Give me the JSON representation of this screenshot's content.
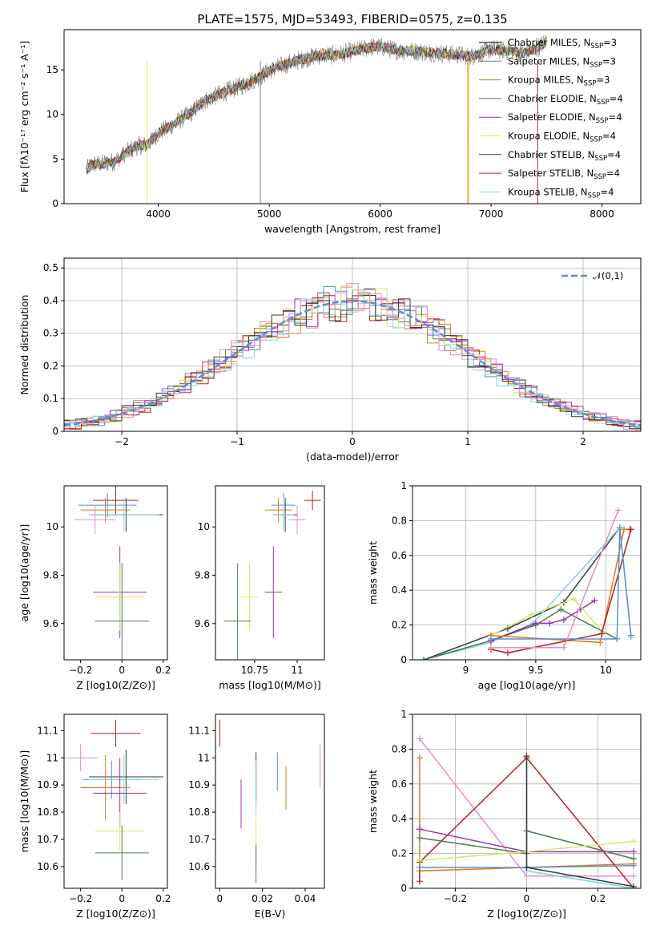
{
  "figure": {
    "title": "PLATE=1575, MJD=53493, FIBERID=0575, z=0.135"
  },
  "chart_data": [
    {
      "id": "spectrum",
      "type": "line",
      "xlabel": "wavelength [Angstrom, rest frame]",
      "ylabel": "Flux [fλ10⁻¹⁷ erg cm⁻² s⁻¹ A⁻¹]",
      "xlim": [
        3150,
        8350
      ],
      "ylim": [
        0,
        19.5
      ],
      "xticks": [
        4000,
        5000,
        6000,
        7000,
        8000
      ],
      "yticks": [
        0,
        5,
        10,
        15
      ],
      "grid": false,
      "legend_position": "right",
      "observed_color": "#808080",
      "observed": {
        "x": [
          3350,
          3400,
          3500,
          3600,
          3700,
          3800,
          3900,
          4000,
          4100,
          4200,
          4300,
          4400,
          4500,
          4600,
          4700,
          4800,
          4900,
          5000,
          5100,
          5200,
          5300,
          5400,
          5500,
          5600,
          5700,
          5800,
          5900,
          6000,
          6100,
          6200,
          6300,
          6400,
          6500,
          6600,
          6700,
          6800,
          6900,
          7000,
          7100,
          7200,
          7300,
          7400,
          7500
        ],
        "y": [
          3.8,
          4.4,
          4.5,
          4.7,
          5.6,
          6.4,
          6.6,
          7.9,
          8.6,
          9.4,
          10.2,
          11.4,
          12.0,
          12.5,
          13.0,
          13.5,
          14.1,
          14.9,
          15.4,
          15.8,
          16.2,
          16.5,
          16.7,
          16.6,
          16.9,
          17.2,
          17.5,
          17.6,
          17.3,
          17.1,
          17.1,
          17.0,
          16.9,
          16.8,
          16.7,
          16.5,
          16.8,
          17.3,
          17.2,
          17.1,
          16.9,
          17.3,
          18.2
        ]
      },
      "series": [
        {
          "name": "Chabrier MILES, N<sub>SSP</sub>=3",
          "label": "Chabrier MILES, N",
          "sub": "SSP",
          "suffix": "=3",
          "color": "#000000",
          "x": [
            3350,
            8000
          ],
          "y": [
            4.0,
            17.4
          ]
        },
        {
          "name": "Salpeter MILES, N<sub>SSP</sub>=3",
          "label": "Salpeter MILES, N",
          "sub": "SSP",
          "suffix": "=3",
          "color": "#7f7f7f",
          "x": [
            3350,
            8000
          ],
          "y": [
            4.0,
            17.4
          ]
        },
        {
          "name": "Kroupa MILES, N<sub>SSP</sub>=3",
          "label": "Kroupa MILES, N",
          "sub": "SSP",
          "suffix": "=3",
          "color": "#b8860b",
          "x": [
            3350,
            8000
          ],
          "y": [
            4.0,
            17.4
          ]
        },
        {
          "name": "Chabrier ELODIE, N<sub>SSP</sub>=4",
          "label": "Chabrier ELODIE, N",
          "sub": "SSP",
          "suffix": "=4",
          "color": "#4a7d4a",
          "x": [
            3350,
            8000
          ],
          "y": [
            4.0,
            17.4
          ]
        },
        {
          "name": "Salpeter ELODIE, N<sub>SSP</sub>=4",
          "label": "Salpeter ELODIE, N",
          "sub": "SSP",
          "suffix": "=4",
          "color": "#9b30b0",
          "x": [
            3350,
            8000
          ],
          "y": [
            4.0,
            17.4
          ]
        },
        {
          "name": "Kroupa ELODIE, N<sub>SSP</sub>=4",
          "label": "Kroupa ELODIE, N",
          "sub": "SSP",
          "suffix": "=4",
          "color": "#e6e84a",
          "x": [
            3350,
            8000
          ],
          "y": [
            4.0,
            17.4
          ]
        },
        {
          "name": "Chabrier STELIB, N<sub>SSP</sub>=4",
          "label": "Chabrier STELIB, N",
          "sub": "SSP",
          "suffix": "=4",
          "color": "#3a3a3a",
          "x": [
            3350,
            8000
          ],
          "y": [
            4.0,
            17.4
          ]
        },
        {
          "name": "Salpeter STELIB, N<sub>SSP</sub>=4",
          "label": "Salpeter STELIB, N",
          "sub": "SSP",
          "suffix": "=4",
          "color": "#b22222",
          "x": [
            3350,
            8000
          ],
          "y": [
            4.0,
            17.4
          ]
        },
        {
          "name": "Kroupa STELIB, N<sub>SSP</sub>=4",
          "label": "Kroupa STELIB, N",
          "sub": "SSP",
          "suffix": "=4",
          "color": "#7fd6e0",
          "x": [
            3350,
            8000
          ],
          "y": [
            4.0,
            17.4
          ]
        }
      ],
      "vertical_drops": [
        {
          "x": 3900,
          "color": "#e6e84a"
        },
        {
          "x": 4920,
          "color": "#808080"
        },
        {
          "x": 6800,
          "color": "#e6e84a"
        },
        {
          "x": 6790,
          "color": "#e07b1a"
        },
        {
          "x": 7420,
          "color": "#b22222"
        }
      ]
    },
    {
      "id": "residuals",
      "type": "line",
      "xlabel": "(data-model)/error",
      "ylabel": "Normed distribution",
      "xlim": [
        -2.5,
        2.5
      ],
      "ylim": [
        0,
        0.53
      ],
      "xticks": [
        -2,
        -1,
        0,
        1,
        2
      ],
      "yticks": [
        0.0,
        0.1,
        0.2,
        0.3,
        0.4,
        0.5
      ],
      "grid": true,
      "legend_position": "top-right",
      "gaussian": {
        "label": "𝒩(0,1)",
        "color": "#5b8fd6",
        "mean": 0,
        "sigma": 1
      },
      "histogram_colors": [
        "#e8868a",
        "#5b8fd6",
        "#4a7d4a",
        "#e07b1a",
        "#9b30b0",
        "#b22222",
        "#d4e86a",
        "#7fd6e0",
        "#3a3a3a",
        "#e88bc6"
      ],
      "bin_width": 0.1
    },
    {
      "id": "age-vs-Z",
      "type": "scatter",
      "xlabel": "Z [log10(Z/Z⊙)]",
      "ylabel": "age  [log10(age/yr)]",
      "xlim": [
        -0.28,
        0.22
      ],
      "ylim": [
        9.45,
        10.17
      ],
      "xticks": [
        -0.2,
        0.0,
        0.2
      ],
      "yticks": [
        9.6,
        9.8,
        10.0
      ],
      "grid": false,
      "points": [
        {
          "x": -0.03,
          "y": 10.11,
          "xerr": 0.11,
          "yerr": 0.06,
          "color": "#b22222"
        },
        {
          "x": -0.07,
          "y": 10.09,
          "xerr": 0.14,
          "yerr": 0.05,
          "color": "#5b8fd6"
        },
        {
          "x": -0.08,
          "y": 10.07,
          "xerr": 0.12,
          "yerr": 0.05,
          "color": "#e07b1a"
        },
        {
          "x": 0.02,
          "y": 10.05,
          "xerr": 0.18,
          "yerr": 0.07,
          "color": "#3a3a3a"
        },
        {
          "x": 0.01,
          "y": 10.05,
          "xerr": 0.17,
          "yerr": 0.07,
          "color": "#7fd6e0"
        },
        {
          "x": -0.13,
          "y": 10.03,
          "xerr": 0.1,
          "yerr": 0.06,
          "color": "#e88bc6"
        },
        {
          "x": -0.01,
          "y": 9.73,
          "xerr": 0.13,
          "yerr": 0.19,
          "color": "#9b30b0"
        },
        {
          "x": -0.01,
          "y": 9.71,
          "xerr": 0.12,
          "yerr": 0.14,
          "color": "#d4e86a"
        },
        {
          "x": 0.0,
          "y": 9.61,
          "xerr": 0.13,
          "yerr": 0.24,
          "color": "#4a7d4a"
        }
      ]
    },
    {
      "id": "age-vs-mass",
      "type": "scatter",
      "xlabel": "mass [log10(M/M⊙)]",
      "ylabel": "",
      "xlim": [
        10.52,
        11.16
      ],
      "ylim": [
        9.45,
        10.17
      ],
      "xticks": [
        10.75,
        11.0
      ],
      "yticks": [
        9.6,
        9.8,
        10.0
      ],
      "grid": false,
      "points": [
        {
          "x": 11.09,
          "y": 10.11,
          "xerr": 0.05,
          "yerr": 0.04,
          "color": "#b22222"
        },
        {
          "x": 10.92,
          "y": 10.09,
          "xerr": 0.07,
          "yerr": 0.05,
          "color": "#5b8fd6"
        },
        {
          "x": 10.89,
          "y": 10.07,
          "xerr": 0.08,
          "yerr": 0.05,
          "color": "#e07b1a"
        },
        {
          "x": 10.93,
          "y": 10.05,
          "xerr": 0.07,
          "yerr": 0.07,
          "color": "#3a3a3a"
        },
        {
          "x": 10.92,
          "y": 10.05,
          "xerr": 0.06,
          "yerr": 0.07,
          "color": "#7fd6e0"
        },
        {
          "x": 11.0,
          "y": 10.03,
          "xerr": 0.05,
          "yerr": 0.06,
          "color": "#e88bc6"
        },
        {
          "x": 10.86,
          "y": 9.73,
          "xerr": 0.05,
          "yerr": 0.19,
          "color": "#9b30b0"
        },
        {
          "x": 10.72,
          "y": 9.71,
          "xerr": 0.05,
          "yerr": 0.14,
          "color": "#d4e86a"
        },
        {
          "x": 10.65,
          "y": 9.61,
          "xerr": 0.08,
          "yerr": 0.24,
          "color": "#4a7d4a"
        }
      ]
    },
    {
      "id": "massweight-vs-age",
      "type": "line",
      "xlabel": "age  [log10(age/yr)]",
      "ylabel": "mass weight",
      "xlim": [
        8.62,
        10.25
      ],
      "ylim": [
        0,
        1.0
      ],
      "xticks": [
        9.0,
        9.5,
        10.0
      ],
      "yticks": [
        0.0,
        0.2,
        0.4,
        0.6,
        0.8,
        1.0
      ],
      "grid": true,
      "series": [
        {
          "color": "#3a3a3a",
          "x": [
            8.7,
            9.3,
            9.7,
            10.1
          ],
          "y": [
            0.0,
            0.18,
            0.33,
            0.76
          ]
        },
        {
          "color": "#7fd6e0",
          "x": [
            8.7,
            9.18,
            9.48,
            10.1,
            10.18
          ],
          "y": [
            0.0,
            0.1,
            0.21,
            0.76,
            0.13
          ]
        },
        {
          "color": "#4a7d4a",
          "x": [
            8.7,
            9.18,
            9.5,
            9.68,
            10.08
          ],
          "y": [
            0.0,
            0.11,
            0.2,
            0.29,
            0.12
          ]
        },
        {
          "color": "#9b30b0",
          "x": [
            9.18,
            9.5,
            9.6,
            9.7,
            9.82,
            9.92
          ],
          "y": [
            0.11,
            0.21,
            0.21,
            0.23,
            0.29,
            0.34
          ]
        },
        {
          "color": "#d4e86a",
          "x": [
            9.18,
            9.47,
            9.77,
            9.98
          ],
          "y": [
            0.14,
            0.26,
            0.35,
            0.16
          ]
        },
        {
          "color": "#e07b1a",
          "x": [
            9.18,
            9.96,
            10.13,
            10.17
          ],
          "y": [
            0.14,
            0.1,
            0.75,
            0.75
          ]
        },
        {
          "color": "#b22222",
          "x": [
            9.18,
            9.3,
            9.97,
            10.18
          ],
          "y": [
            0.06,
            0.04,
            0.15,
            0.75
          ]
        },
        {
          "color": "#5b8fd6",
          "x": [
            9.18,
            10.08,
            10.1,
            10.18
          ],
          "y": [
            0.12,
            0.12,
            0.76,
            0.14
          ]
        },
        {
          "color": "#e88bc6",
          "x": [
            9.18,
            9.7,
            10.09
          ],
          "y": [
            0.07,
            0.07,
            0.86
          ]
        }
      ]
    },
    {
      "id": "mass-vs-Z",
      "type": "scatter",
      "xlabel": "Z [log10(Z/Z⊙)]",
      "ylabel": "mass [log10(M/M⊙)]",
      "xlim": [
        -0.28,
        0.22
      ],
      "ylim": [
        10.52,
        11.16
      ],
      "xticks": [
        -0.2,
        0.0,
        0.2
      ],
      "yticks": [
        10.6,
        10.7,
        10.8,
        10.9,
        11.0,
        11.1
      ],
      "grid": false,
      "points": [
        {
          "x": -0.03,
          "y": 11.09,
          "xerr": 0.12,
          "yerr": 0.05,
          "color": "#b22222"
        },
        {
          "x": -0.2,
          "y": 11.0,
          "xerr": 0.08,
          "yerr": 0.05,
          "color": "#e88bc6"
        },
        {
          "x": 0.02,
          "y": 10.93,
          "xerr": 0.18,
          "yerr": 0.1,
          "color": "#3a3a3a"
        },
        {
          "x": -0.05,
          "y": 10.92,
          "xerr": 0.14,
          "yerr": 0.07,
          "color": "#5b8fd6"
        },
        {
          "x": 0.01,
          "y": 10.92,
          "xerr": 0.17,
          "yerr": 0.09,
          "color": "#7fd6e0"
        },
        {
          "x": -0.08,
          "y": 10.89,
          "xerr": 0.12,
          "yerr": 0.12,
          "color": "#e07b1a"
        },
        {
          "x": -0.01,
          "y": 10.87,
          "xerr": 0.13,
          "yerr": 0.13,
          "color": "#9b30b0"
        },
        {
          "x": -0.01,
          "y": 10.73,
          "xerr": 0.12,
          "yerr": 0.07,
          "color": "#d4e86a"
        },
        {
          "x": 0.0,
          "y": 10.65,
          "xerr": 0.13,
          "yerr": 0.1,
          "color": "#4a7d4a"
        }
      ]
    },
    {
      "id": "mass-vs-ebv",
      "type": "scatter",
      "xlabel": "E(B-V)",
      "ylabel": "",
      "xlim": [
        -0.002,
        0.049
      ],
      "ylim": [
        10.52,
        11.16
      ],
      "xticks": [
        0.0,
        0.02,
        0.04
      ],
      "yticks": [
        10.6,
        10.7,
        10.8,
        10.9,
        11.0,
        11.1
      ],
      "grid": false,
      "points": [
        {
          "x": 0.0,
          "y": 11.09,
          "xerr": 0.0,
          "yerr": 0.05,
          "color": "#b22222"
        },
        {
          "x": 0.047,
          "y": 10.97,
          "xerr": 0.0,
          "yerr": 0.08,
          "color": "#e88bc6"
        },
        {
          "x": 0.017,
          "y": 10.93,
          "xerr": 0.0,
          "yerr": 0.09,
          "color": "#3a3a3a"
        },
        {
          "x": 0.027,
          "y": 10.95,
          "xerr": 0.0,
          "yerr": 0.07,
          "color": "#5b8fd6"
        },
        {
          "x": 0.017,
          "y": 10.89,
          "xerr": 0.0,
          "yerr": 0.1,
          "color": "#7fd6e0"
        },
        {
          "x": 0.031,
          "y": 10.89,
          "xerr": 0.0,
          "yerr": 0.08,
          "color": "#e07b1a"
        },
        {
          "x": 0.01,
          "y": 10.83,
          "xerr": 0.0,
          "yerr": 0.09,
          "color": "#9b30b0"
        },
        {
          "x": 0.017,
          "y": 10.69,
          "xerr": 0.0,
          "yerr": 0.09,
          "color": "#d4e86a"
        },
        {
          "x": 0.017,
          "y": 10.61,
          "xerr": 0.0,
          "yerr": 0.07,
          "color": "#4a7d4a"
        }
      ]
    },
    {
      "id": "massweight-vs-Z",
      "type": "line",
      "xlabel": "Z [log10(Z/Z⊙)]",
      "ylabel": "mass weight",
      "xlim": [
        -0.32,
        0.32
      ],
      "ylim": [
        0,
        1.0
      ],
      "xticks": [
        -0.2,
        0.0,
        0.2
      ],
      "yticks": [
        0.0,
        0.2,
        0.4,
        0.6,
        0.8,
        1.0
      ],
      "grid": true,
      "series": [
        {
          "color": "#e88bc6",
          "x": [
            -0.3,
            0.0,
            0.3
          ],
          "y": [
            0.86,
            0.07,
            0.07
          ]
        },
        {
          "color": "#e07b1a",
          "x": [
            -0.3,
            -0.3,
            0.0,
            0.3
          ],
          "y": [
            0.75,
            0.1,
            0.12,
            0.14
          ]
        },
        {
          "color": "#b22222",
          "x": [
            -0.3,
            -0.3,
            0.0,
            0.3
          ],
          "y": [
            0.04,
            0.15,
            0.75,
            0.0
          ]
        },
        {
          "color": "#9b30b0",
          "x": [
            -0.3,
            0.0,
            0.3
          ],
          "y": [
            0.34,
            0.21,
            0.21
          ]
        },
        {
          "color": "#4a7d4a",
          "x": [
            -0.3,
            0.0,
            0.0,
            0.3
          ],
          "y": [
            0.29,
            0.2,
            0.33,
            0.17
          ]
        },
        {
          "color": "#d4e86a",
          "x": [
            -0.3,
            0.0,
            0.3
          ],
          "y": [
            0.16,
            0.21,
            0.27
          ]
        },
        {
          "color": "#5b8fd6",
          "x": [
            -0.3,
            0.0,
            0.3
          ],
          "y": [
            0.12,
            0.12,
            0.13
          ]
        },
        {
          "color": "#7fd6e0",
          "x": [
            0.0,
            0.0,
            0.3
          ],
          "y": [
            0.76,
            0.1,
            0.0
          ]
        },
        {
          "color": "#3a3a3a",
          "x": [
            0.0,
            0.0,
            0.3
          ],
          "y": [
            0.76,
            0.12,
            0.01
          ]
        }
      ]
    }
  ]
}
